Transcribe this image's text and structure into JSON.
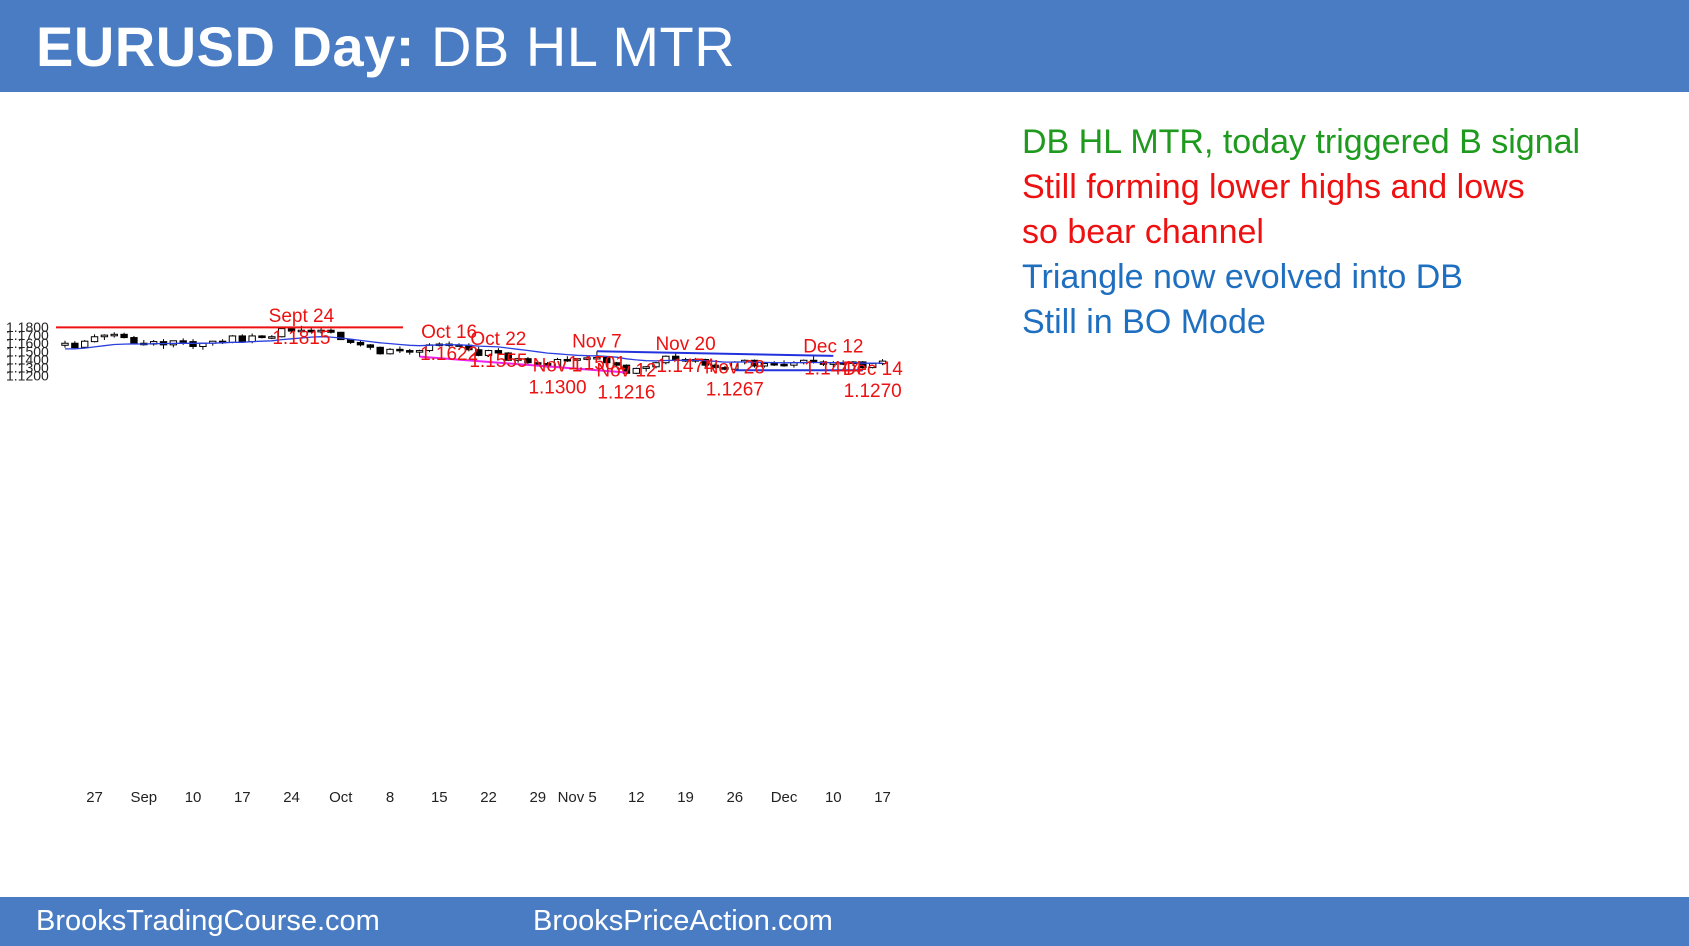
{
  "header": {
    "title_bold": "EURUSD Day:",
    "title_rest": " DB HL MTR"
  },
  "notes": [
    {
      "text": "DB HL MTR, today triggered B signal",
      "color": "#1e9a1e"
    },
    {
      "text": "Still forming lower highs and lows",
      "color": "#ee1111"
    },
    {
      "text": "so bear channel",
      "color": "#ee1111"
    },
    {
      "text": "Triangle now evolved into DB",
      "color": "#1f6fc0"
    },
    {
      "text": "Still in BO Mode",
      "color": "#1f6fc0"
    }
  ],
  "footer": {
    "left_link": "BrooksTradingCourse.com",
    "right_link": "BrooksPriceAction.com"
  },
  "colors": {
    "brand": "#4a7cc4",
    "annotation_red": "#ee1111",
    "ema": "#2b3fe0",
    "resistance": "#ee1111",
    "wedge": "#ee22ee",
    "triangle": "#2233dd"
  },
  "chart_data": {
    "type": "candlestick",
    "title": "",
    "ylim": [
      1.115,
      1.19
    ],
    "y_ticks": [
      "1.1800",
      "1.1700",
      "1.1600",
      "1.1500",
      "1.1400",
      "1.1300",
      "1.1200"
    ],
    "x_ticks": [
      {
        "label": "27",
        "bar": 3
      },
      {
        "label": "Sep",
        "bar": 8
      },
      {
        "label": "10",
        "bar": 13
      },
      {
        "label": "17",
        "bar": 18
      },
      {
        "label": "24",
        "bar": 23
      },
      {
        "label": "Oct",
        "bar": 28
      },
      {
        "label": "8",
        "bar": 33
      },
      {
        "label": "15",
        "bar": 38
      },
      {
        "label": "22",
        "bar": 43
      },
      {
        "label": "29",
        "bar": 48
      },
      {
        "label": "Nov 5",
        "bar": 52
      },
      {
        "label": "12",
        "bar": 58
      },
      {
        "label": "19",
        "bar": 63
      },
      {
        "label": "26",
        "bar": 68
      },
      {
        "label": "Dec",
        "bar": 73
      },
      {
        "label": "10",
        "bar": 78
      },
      {
        "label": "17",
        "bar": 83
      }
    ],
    "candles": [
      [
        1.1575,
        1.163,
        1.1545,
        1.16
      ],
      [
        1.16,
        1.1625,
        1.1538,
        1.1545
      ],
      [
        1.155,
        1.164,
        1.154,
        1.1625
      ],
      [
        1.162,
        1.171,
        1.161,
        1.168
      ],
      [
        1.168,
        1.171,
        1.164,
        1.17
      ],
      [
        1.17,
        1.1735,
        1.167,
        1.171
      ],
      [
        1.171,
        1.173,
        1.166,
        1.167
      ],
      [
        1.167,
        1.169,
        1.159,
        1.16
      ],
      [
        1.16,
        1.164,
        1.157,
        1.159
      ],
      [
        1.159,
        1.164,
        1.157,
        1.162
      ],
      [
        1.162,
        1.165,
        1.153,
        1.158
      ],
      [
        1.158,
        1.163,
        1.155,
        1.163
      ],
      [
        1.163,
        1.166,
        1.158,
        1.162
      ],
      [
        1.162,
        1.165,
        1.153,
        1.156
      ],
      [
        1.156,
        1.16,
        1.152,
        1.16
      ],
      [
        1.16,
        1.163,
        1.157,
        1.1625
      ],
      [
        1.1625,
        1.165,
        1.159,
        1.161
      ],
      [
        1.161,
        1.17,
        1.16,
        1.169
      ],
      [
        1.169,
        1.171,
        1.161,
        1.162
      ],
      [
        1.162,
        1.172,
        1.16,
        1.169
      ],
      [
        1.169,
        1.17,
        1.166,
        1.167
      ],
      [
        1.167,
        1.17,
        1.165,
        1.168
      ],
      [
        1.168,
        1.18,
        1.167,
        1.178
      ],
      [
        1.178,
        1.18,
        1.173,
        1.175
      ],
      [
        1.175,
        1.1815,
        1.173,
        1.176
      ],
      [
        1.176,
        1.179,
        1.173,
        1.174
      ],
      [
        1.174,
        1.179,
        1.172,
        1.176
      ],
      [
        1.176,
        1.178,
        1.172,
        1.1735
      ],
      [
        1.1735,
        1.174,
        1.164,
        1.1645
      ],
      [
        1.1645,
        1.165,
        1.159,
        1.161
      ],
      [
        1.161,
        1.163,
        1.156,
        1.158
      ],
      [
        1.158,
        1.159,
        1.152,
        1.155
      ],
      [
        1.155,
        1.156,
        1.146,
        1.147
      ],
      [
        1.147,
        1.154,
        1.146,
        1.1525
      ],
      [
        1.1525,
        1.156,
        1.148,
        1.151
      ],
      [
        1.151,
        1.153,
        1.146,
        1.149
      ],
      [
        1.149,
        1.152,
        1.143,
        1.151
      ],
      [
        1.151,
        1.16,
        1.149,
        1.158
      ],
      [
        1.158,
        1.161,
        1.156,
        1.159
      ],
      [
        1.159,
        1.1622,
        1.155,
        1.158
      ],
      [
        1.158,
        1.16,
        1.156,
        1.1575
      ],
      [
        1.1575,
        1.16,
        1.15,
        1.152
      ],
      [
        1.152,
        1.1555,
        1.144,
        1.145
      ],
      [
        1.145,
        1.152,
        1.143,
        1.151
      ],
      [
        1.151,
        1.154,
        1.147,
        1.148
      ],
      [
        1.148,
        1.149,
        1.138,
        1.139
      ],
      [
        1.139,
        1.142,
        1.136,
        1.141
      ],
      [
        1.141,
        1.143,
        1.134,
        1.136
      ],
      [
        1.136,
        1.138,
        1.132,
        1.135
      ],
      [
        1.135,
        1.137,
        1.13,
        1.131
      ],
      [
        1.131,
        1.142,
        1.13,
        1.14
      ],
      [
        1.14,
        1.144,
        1.137,
        1.139
      ],
      [
        1.139,
        1.142,
        1.137,
        1.141
      ],
      [
        1.141,
        1.144,
        1.139,
        1.142
      ],
      [
        1.142,
        1.1501,
        1.14,
        1.1425
      ],
      [
        1.1425,
        1.144,
        1.135,
        1.136
      ],
      [
        1.136,
        1.137,
        1.13,
        1.133
      ],
      [
        1.133,
        1.134,
        1.1216,
        1.123
      ],
      [
        1.123,
        1.13,
        1.122,
        1.129
      ],
      [
        1.129,
        1.132,
        1.125,
        1.131
      ],
      [
        1.131,
        1.137,
        1.129,
        1.136
      ],
      [
        1.136,
        1.145,
        1.134,
        1.144
      ],
      [
        1.144,
        1.1474,
        1.138,
        1.14
      ],
      [
        1.14,
        1.142,
        1.137,
        1.138
      ],
      [
        1.138,
        1.142,
        1.136,
        1.14
      ],
      [
        1.14,
        1.141,
        1.131,
        1.133
      ],
      [
        1.133,
        1.135,
        1.129,
        1.13
      ],
      [
        1.13,
        1.132,
        1.1267,
        1.128
      ],
      [
        1.128,
        1.138,
        1.127,
        1.137
      ],
      [
        1.137,
        1.14,
        1.134,
        1.139
      ],
      [
        1.139,
        1.14,
        1.13,
        1.132
      ],
      [
        1.132,
        1.137,
        1.13,
        1.135
      ],
      [
        1.135,
        1.138,
        1.132,
        1.134
      ],
      [
        1.134,
        1.139,
        1.131,
        1.133
      ],
      [
        1.133,
        1.138,
        1.13,
        1.136
      ],
      [
        1.136,
        1.14,
        1.134,
        1.139
      ],
      [
        1.139,
        1.1444,
        1.135,
        1.137
      ],
      [
        1.137,
        1.139,
        1.132,
        1.134
      ],
      [
        1.134,
        1.138,
        1.13,
        1.136
      ],
      [
        1.136,
        1.139,
        1.133,
        1.135
      ],
      [
        1.135,
        1.138,
        1.132,
        1.137
      ],
      [
        1.137,
        1.138,
        1.127,
        1.13
      ],
      [
        1.13,
        1.136,
        1.129,
        1.135
      ],
      [
        1.135,
        1.1405,
        1.133,
        1.138
      ]
    ],
    "ema_20": [
      1.153,
      1.1532,
      1.154,
      1.1555,
      1.157,
      1.1585,
      1.159,
      1.1592,
      1.159,
      1.1595,
      1.1595,
      1.1598,
      1.16,
      1.1598,
      1.16,
      1.1602,
      1.1605,
      1.1612,
      1.1612,
      1.162,
      1.1625,
      1.163,
      1.1645,
      1.1655,
      1.1665,
      1.1675,
      1.168,
      1.1675,
      1.1665,
      1.165,
      1.1635,
      1.162,
      1.1605,
      1.1595,
      1.1585,
      1.1575,
      1.157,
      1.1575,
      1.158,
      1.1582,
      1.158,
      1.1575,
      1.1565,
      1.156,
      1.1555,
      1.154,
      1.1525,
      1.151,
      1.1495,
      1.1478,
      1.147,
      1.146,
      1.1452,
      1.1447,
      1.1445,
      1.1438,
      1.1428,
      1.1408,
      1.1395,
      1.1385,
      1.1382,
      1.1388,
      1.139,
      1.139,
      1.1392,
      1.1385,
      1.1377,
      1.1368,
      1.1368,
      1.137,
      1.1365,
      1.1364,
      1.1362,
      1.1359,
      1.136,
      1.1363,
      1.1363,
      1.1361,
      1.1361,
      1.136,
      1.1361,
      1.1354,
      1.1354,
      1.1356
    ],
    "lines": [
      {
        "kind": "resistance",
        "from": {
          "bar": 0,
          "price": 1.1795
        },
        "to": {
          "bar": 40,
          "price": 1.1795
        }
      },
      {
        "kind": "wedge",
        "from": {
          "bar": 36,
          "price": 1.1435
        },
        "to": {
          "bar": 57,
          "price": 1.124
        }
      },
      {
        "kind": "triangle-top",
        "from": {
          "bar": 54,
          "price": 1.1501
        },
        "to": {
          "bar": 78,
          "price": 1.1444
        }
      },
      {
        "kind": "double-bottom",
        "from": {
          "bar": 68,
          "price": 1.1268
        },
        "to": {
          "bar": 81,
          "price": 1.1268
        }
      }
    ],
    "labels": [
      {
        "lines": [
          "Sept 24",
          "1.1815"
        ],
        "bar": 24,
        "price": 1.186
      },
      {
        "lines": [
          "Oct 16",
          "1.1622"
        ],
        "bar": 39,
        "price": 1.1667
      },
      {
        "lines": [
          "Oct 22",
          "1.1555"
        ],
        "bar": 44,
        "price": 1.158
      },
      {
        "lines": [
          "Nov 7",
          "1.1501"
        ],
        "bar": 54,
        "price": 1.1546
      },
      {
        "lines": [
          "Nov 20",
          "1.1474"
        ],
        "bar": 63,
        "price": 1.1514
      },
      {
        "lines": [
          "Nov 1",
          "1.1300"
        ],
        "bar": 50,
        "price": 1.1255
      },
      {
        "lines": [
          "Nov 12",
          "1.1216"
        ],
        "bar": 57,
        "price": 1.1189
      },
      {
        "lines": [
          "Nov 28",
          "1.1267"
        ],
        "bar": 68,
        "price": 1.1225
      },
      {
        "lines": [
          "Dec 12",
          "1.1444"
        ],
        "bar": 78,
        "price": 1.1484
      },
      {
        "lines": [
          "Dec 14",
          "1.1270"
        ],
        "bar": 82,
        "price": 1.1208
      }
    ]
  }
}
